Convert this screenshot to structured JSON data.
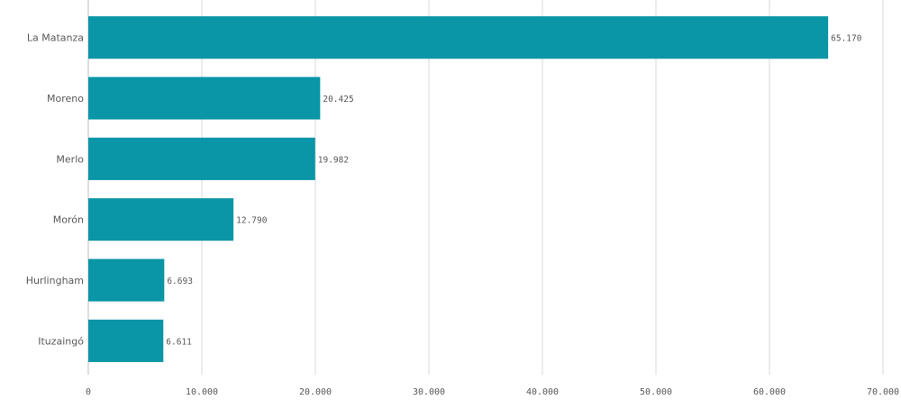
{
  "chart_data": {
    "type": "bar",
    "orientation": "horizontal",
    "categories": [
      "La Matanza",
      "Moreno",
      "Merlo",
      "Morón",
      "Hurlingham",
      "Ituzaingó"
    ],
    "values": [
      65170,
      20425,
      19982,
      12790,
      6693,
      6611
    ],
    "value_labels": [
      "65.170",
      "20.425",
      "19.982",
      "12.790",
      "6.693",
      "6.611"
    ],
    "x_ticks": [
      0,
      10000,
      20000,
      30000,
      40000,
      50000,
      60000,
      70000
    ],
    "x_tick_labels": [
      "0",
      "10.000",
      "20.000",
      "30.000",
      "40.000",
      "50.000",
      "60.000",
      "70.000"
    ],
    "xlim": [
      0,
      70000
    ],
    "title": "",
    "xlabel": "",
    "ylabel": "",
    "grid": true,
    "bar_color": "#0a96a6"
  }
}
